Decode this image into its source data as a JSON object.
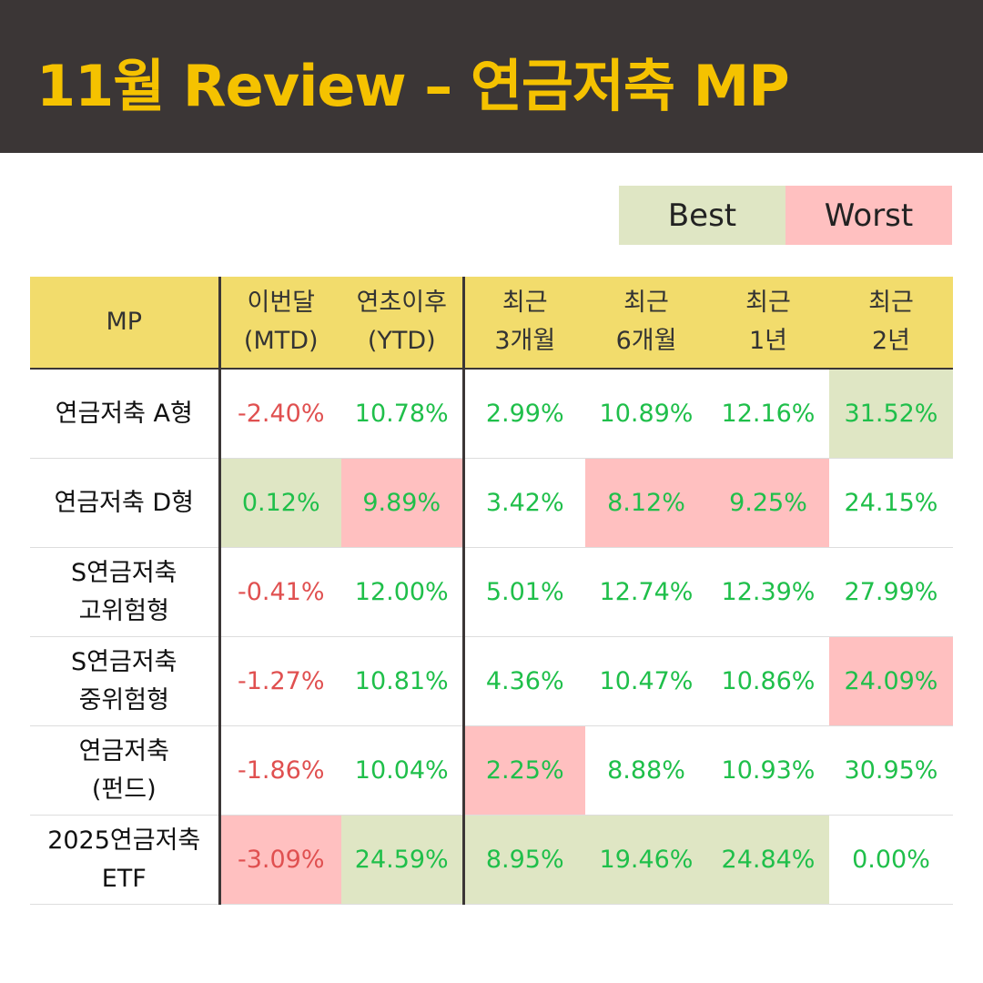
{
  "header": {
    "title": "11월 Review – 연금저축 MP"
  },
  "legend": {
    "best": "Best",
    "worst": "Worst"
  },
  "colors": {
    "header_bg": "#3b3636",
    "title": "#f5c200",
    "table_header_bg": "#f2dc6c",
    "best": "#dfe6c4",
    "worst": "#ffc0c0",
    "positive": "#1fbf4a",
    "negative": "#e05050"
  },
  "table": {
    "columns": [
      [
        "MP"
      ],
      [
        "이번달",
        "(MTD)"
      ],
      [
        "연초이후",
        "(YTD)"
      ],
      [
        "최근",
        "3개월"
      ],
      [
        "최근",
        "6개월"
      ],
      [
        "최근",
        "1년"
      ],
      [
        "최근",
        "2년"
      ]
    ],
    "rows": [
      {
        "name": [
          "연금저축 A형"
        ],
        "values": [
          "-2.40%",
          "10.78%",
          "2.99%",
          "10.89%",
          "12.16%",
          "31.52%"
        ],
        "highlight": [
          "",
          "",
          "",
          "",
          "",
          "best"
        ]
      },
      {
        "name": [
          "연금저축 D형"
        ],
        "values": [
          "0.12%",
          "9.89%",
          "3.42%",
          "8.12%",
          "9.25%",
          "24.15%"
        ],
        "highlight": [
          "best",
          "worst",
          "",
          "worst",
          "worst",
          ""
        ]
      },
      {
        "name": [
          "S연금저축",
          "고위험형"
        ],
        "values": [
          "-0.41%",
          "12.00%",
          "5.01%",
          "12.74%",
          "12.39%",
          "27.99%"
        ],
        "highlight": [
          "",
          "",
          "",
          "",
          "",
          ""
        ]
      },
      {
        "name": [
          "S연금저축",
          "중위험형"
        ],
        "values": [
          "-1.27%",
          "10.81%",
          "4.36%",
          "10.47%",
          "10.86%",
          "24.09%"
        ],
        "highlight": [
          "",
          "",
          "",
          "",
          "",
          "worst"
        ]
      },
      {
        "name": [
          "연금저축",
          "(펀드)"
        ],
        "values": [
          "-1.86%",
          "10.04%",
          "2.25%",
          "8.88%",
          "10.93%",
          "30.95%"
        ],
        "highlight": [
          "",
          "",
          "worst",
          "",
          "",
          ""
        ]
      },
      {
        "name": [
          "2025연금저축",
          "ETF"
        ],
        "values": [
          "-3.09%",
          "24.59%",
          "8.95%",
          "19.46%",
          "24.84%",
          "0.00%"
        ],
        "highlight": [
          "worst",
          "best",
          "best",
          "best",
          "best",
          ""
        ]
      }
    ]
  }
}
